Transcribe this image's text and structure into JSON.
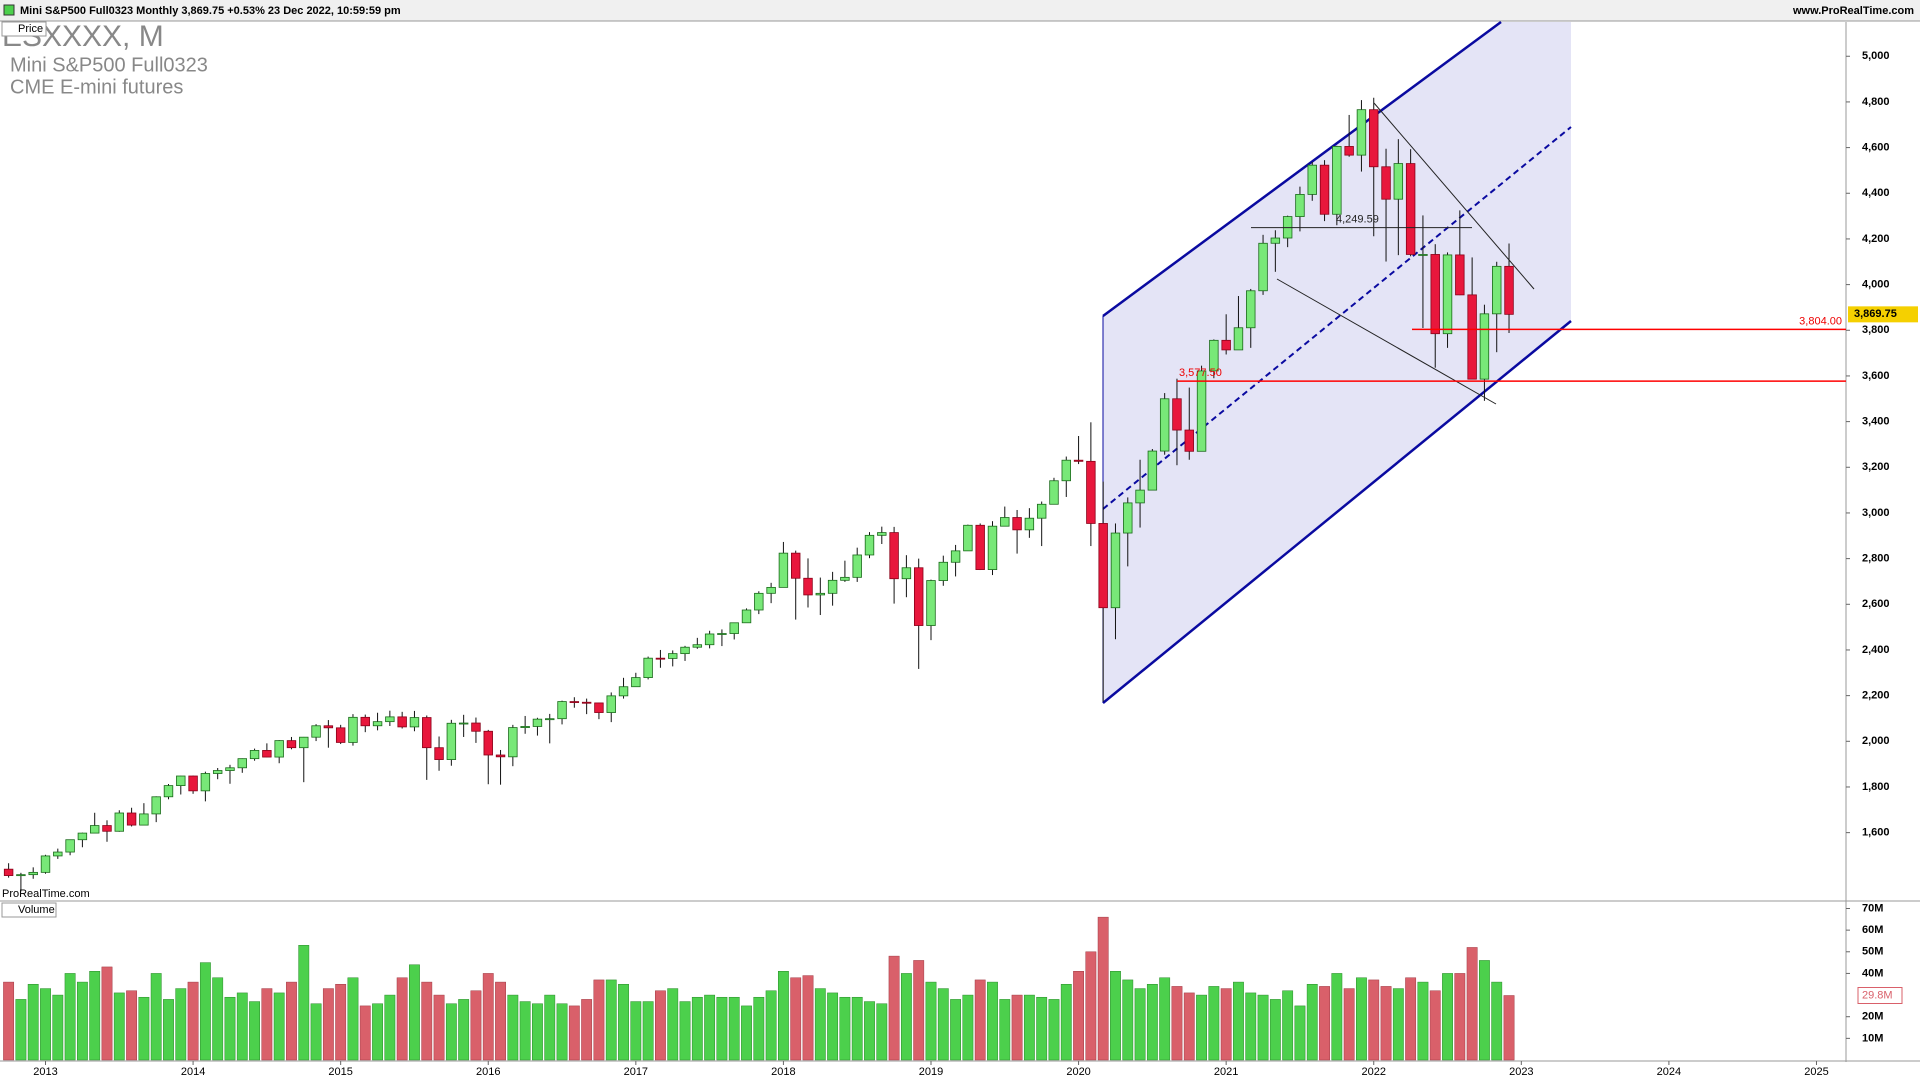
{
  "header": {
    "title": "Mini S&P500 Full0323 Monthly 3,869.75 +0.53% 23 Dec 2022, 10:59:59 pm",
    "site": "www.ProRealTime.com"
  },
  "symbol": "ESXXXX, M",
  "name": "Mini S&P500 Full0323",
  "exchange": "CME E-mini futures",
  "watermark": "ProRealTime.com",
  "chart_data": [
    {
      "type": "candlestick",
      "panel": "Price",
      "up_color": "#78e878",
      "down_color": "#e8173c",
      "xlim": [
        -0.7,
        149.4
      ],
      "xticks": [
        {
          "value": 3,
          "label": "2013"
        },
        {
          "value": 15,
          "label": "2014"
        },
        {
          "value": 27,
          "label": "2015"
        },
        {
          "value": 39,
          "label": "2016"
        },
        {
          "value": 51,
          "label": "2017"
        },
        {
          "value": 63,
          "label": "2018"
        },
        {
          "value": 75,
          "label": "2019"
        },
        {
          "value": 87,
          "label": "2020"
        },
        {
          "value": 99,
          "label": "2021"
        },
        {
          "value": 111,
          "label": "2022"
        },
        {
          "value": 123,
          "label": "2023"
        },
        {
          "value": 135,
          "label": "2024"
        },
        {
          "value": 147,
          "label": "2025"
        }
      ],
      "ylim": [
        1305,
        5150
      ],
      "yticks": [
        {
          "value": 1600,
          "label": "1,600"
        },
        {
          "value": 1800,
          "label": "1,800"
        },
        {
          "value": 2000,
          "label": "2,000"
        },
        {
          "value": 2200,
          "label": "2,200"
        },
        {
          "value": 2400,
          "label": "2,400"
        },
        {
          "value": 2600,
          "label": "2,600"
        },
        {
          "value": 2800,
          "label": "2,800"
        },
        {
          "value": 3000,
          "label": "3,000"
        },
        {
          "value": 3200,
          "label": "3,200"
        },
        {
          "value": 3400,
          "label": "3,400"
        },
        {
          "value": 3600,
          "label": "3,600"
        },
        {
          "value": 3800,
          "label": "3,800"
        },
        {
          "value": 4000,
          "label": "4,000"
        },
        {
          "value": 4200,
          "label": "4,200"
        },
        {
          "value": 4400,
          "label": "4,400"
        },
        {
          "value": 4600,
          "label": "4,600"
        },
        {
          "value": 4800,
          "label": "4,800"
        },
        {
          "value": 5000,
          "label": "5,000"
        }
      ],
      "open": [
        1440,
        1412,
        1416,
        1426,
        1498,
        1515,
        1569,
        1598,
        1631,
        1606,
        1686,
        1633,
        1682,
        1757,
        1806,
        1848,
        1783,
        1859,
        1872,
        1884,
        1924,
        1960,
        1931,
        2003,
        1972,
        2018,
        2068,
        2059,
        1995,
        2105,
        2068,
        2086,
        2107,
        2063,
        2104,
        1972,
        1920,
        2079,
        2080,
        2044,
        1940,
        1932,
        2060,
        2065,
        2097,
        2099,
        2174,
        2171,
        2168,
        2126,
        2199,
        2239,
        2279,
        2364,
        2363,
        2384,
        2412,
        2423,
        2470,
        2472,
        2519,
        2575,
        2648,
        2674,
        2824,
        2714,
        2641,
        2648,
        2705,
        2718,
        2816,
        2902,
        2914,
        2712,
        2760,
        2507,
        2704,
        2784,
        2834,
        2946,
        2752,
        2942,
        2980,
        2926,
        2977,
        3038,
        3141,
        3231,
        3226,
        2954,
        2585,
        2912,
        3044,
        3100,
        3271,
        3500,
        3363,
        3270,
        3622,
        3756,
        3714,
        3811,
        3973,
        4181,
        4204,
        4298,
        4395,
        4523,
        4308,
        4605,
        4567,
        4766,
        4516,
        4374,
        4530,
        4132,
        4132,
        3785,
        4130,
        3955,
        3586,
        3872,
        4080
      ],
      "high": [
        1466,
        1424,
        1448,
        1503,
        1530,
        1570,
        1600,
        1687,
        1654,
        1698,
        1709,
        1729,
        1759,
        1813,
        1849,
        1850,
        1867,
        1883,
        1897,
        1925,
        1968,
        1991,
        2005,
        2019,
        2019,
        2075,
        2093,
        2072,
        2119,
        2117,
        2125,
        2134,
        2129,
        2133,
        2113,
        2021,
        2094,
        2116,
        2104,
        2050,
        1962,
        2072,
        2111,
        2103,
        2120,
        2178,
        2193,
        2187,
        2169,
        2214,
        2278,
        2300,
        2371,
        2400,
        2398,
        2418,
        2453,
        2484,
        2490,
        2520,
        2582,
        2657,
        2694,
        2873,
        2835,
        2801,
        2717,
        2742,
        2791,
        2848,
        2916,
        2940,
        2939,
        2815,
        2800,
        2708,
        2813,
        2860,
        2949,
        2954,
        2964,
        3028,
        3013,
        3021,
        3050,
        3154,
        3247,
        3337,
        3397,
        3137,
        2954,
        3068,
        3233,
        3280,
        3525,
        3588,
        3549,
        3645,
        3760,
        3870,
        3950,
        3981,
        4218,
        4238,
        4302,
        4429,
        4537,
        4545,
        4608,
        4743,
        4808,
        4818,
        4595,
        4637,
        4593,
        4303,
        4177,
        4141,
        4325,
        4119,
        3912,
        4100,
        4180
      ],
      "low": [
        1403,
        1343,
        1398,
        1420,
        1485,
        1501,
        1536,
        1597,
        1560,
        1604,
        1627,
        1633,
        1646,
        1746,
        1767,
        1770,
        1737,
        1834,
        1814,
        1862,
        1915,
        1930,
        1904,
        1965,
        1821,
        2001,
        1972,
        1988,
        1981,
        2040,
        2048,
        2067,
        2056,
        2044,
        1831,
        1871,
        1893,
        2019,
        1993,
        1812,
        1810,
        1891,
        2033,
        2025,
        1991,
        2074,
        2147,
        2119,
        2097,
        2084,
        2187,
        2245,
        2271,
        2322,
        2328,
        2352,
        2405,
        2407,
        2417,
        2446,
        2520,
        2557,
        2605,
        2683,
        2533,
        2586,
        2553,
        2594,
        2698,
        2698,
        2802,
        2864,
        2603,
        2631,
        2317,
        2443,
        2681,
        2722,
        2848,
        2750,
        2728,
        2952,
        2822,
        2891,
        2855,
        3050,
        3070,
        3214,
        2855,
        2174,
        2447,
        2766,
        2936,
        3101,
        3255,
        3209,
        3233,
        3279,
        3590,
        3694,
        3725,
        3723,
        3955,
        4056,
        4164,
        4233,
        4367,
        4278,
        4260,
        4560,
        4495,
        4212,
        4101,
        4129,
        4124,
        3810,
        3636,
        3723,
        3954,
        3585,
        3491,
        3704,
        3788
      ],
      "close": [
        1412,
        1416,
        1426,
        1498,
        1515,
        1569,
        1598,
        1631,
        1606,
        1686,
        1633,
        1682,
        1757,
        1806,
        1848,
        1783,
        1859,
        1872,
        1884,
        1924,
        1960,
        1931,
        2003,
        1972,
        2018,
        2068,
        2059,
        1995,
        2105,
        2068,
        2086,
        2107,
        2063,
        2104,
        1972,
        1920,
        2079,
        2080,
        2044,
        1940,
        1932,
        2060,
        2065,
        2097,
        2099,
        2174,
        2171,
        2168,
        2126,
        2199,
        2239,
        2279,
        2364,
        2363,
        2384,
        2412,
        2423,
        2470,
        2472,
        2519,
        2575,
        2648,
        2674,
        2824,
        2714,
        2641,
        2648,
        2705,
        2718,
        2816,
        2902,
        2914,
        2712,
        2760,
        2507,
        2704,
        2784,
        2834,
        2946,
        2752,
        2942,
        2980,
        2926,
        2977,
        3038,
        3141,
        3231,
        3226,
        2954,
        2585,
        2912,
        3044,
        3100,
        3271,
        3500,
        3363,
        3270,
        3622,
        3756,
        3714,
        3811,
        3973,
        4181,
        4204,
        4298,
        4395,
        4523,
        4308,
        4605,
        4567,
        4766,
        4516,
        4374,
        4530,
        4132,
        4132,
        3785,
        4130,
        3955,
        3586,
        3872,
        4080,
        3869.75
      ],
      "last": {
        "value": 3869.75,
        "label": "3,869.75"
      },
      "levels": [
        {
          "value": 3804,
          "label": "3,804.00"
        },
        {
          "value": 3577.5,
          "label": "3,577.50"
        },
        {
          "value": 4249.59,
          "label": "4,249.59"
        }
      ]
    },
    {
      "type": "bar",
      "panel": "Volume",
      "up_color": "#4cd04c",
      "down_color": "#d9606a",
      "ylim": [
        0,
        73
      ],
      "yticks": [
        {
          "value": 10,
          "label": "10M"
        },
        {
          "value": 20,
          "label": "20M"
        },
        {
          "value": 40,
          "label": "40M"
        },
        {
          "value": 50,
          "label": "50M"
        },
        {
          "value": 60,
          "label": "60M"
        },
        {
          "value": 70,
          "label": "70M"
        }
      ],
      "values": [
        36,
        28,
        35,
        33,
        30,
        40,
        36,
        41,
        43,
        31,
        32,
        29,
        40,
        28,
        33,
        36,
        45,
        38,
        29,
        31,
        27,
        33,
        31,
        36,
        53,
        26,
        33,
        35,
        38,
        25,
        26,
        30,
        38,
        44,
        36,
        30,
        26,
        28,
        32,
        40,
        36,
        30,
        27,
        26,
        30,
        26,
        25,
        28,
        37,
        37,
        35,
        27,
        27,
        32,
        33,
        27,
        29,
        30,
        29,
        29,
        25,
        29,
        32,
        41,
        38,
        39,
        33,
        31,
        29,
        29,
        27,
        26,
        48,
        40,
        46,
        36,
        33,
        28,
        30,
        37,
        36,
        28,
        30,
        30,
        29,
        28,
        35,
        41,
        50,
        66,
        41,
        37,
        33,
        35,
        38,
        34,
        31,
        30,
        34,
        33,
        36,
        31,
        30,
        28,
        32,
        25,
        35,
        34,
        40,
        33,
        38,
        37,
        34,
        33,
        38,
        36,
        32,
        40,
        40,
        52,
        46,
        36,
        29.8
      ],
      "last": {
        "value": 29.8,
        "label": "29.8M"
      }
    }
  ]
}
